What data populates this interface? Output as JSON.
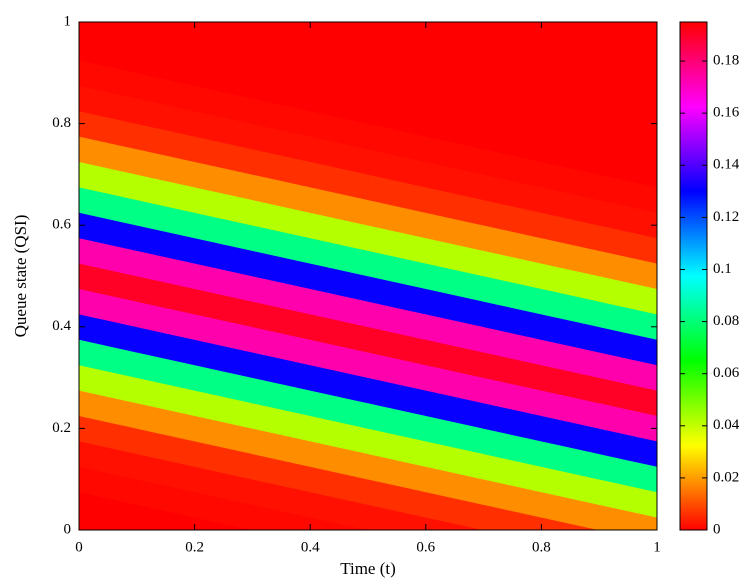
{
  "chart_data": {
    "type": "heatmap",
    "xlabel": "Time (t)",
    "ylabel": "Queue state (QSI)",
    "x": [
      0,
      0.2,
      0.4,
      0.6,
      0.8,
      1
    ],
    "y": [
      0,
      0.05,
      0.1,
      0.15,
      0.2,
      0.25,
      0.3,
      0.35,
      0.4,
      0.45,
      0.5,
      0.55,
      0.6,
      0.65,
      0.7,
      0.75,
      0.8,
      0.85,
      0.9,
      0.95,
      1
    ],
    "z": [
      [
        0,
        0,
        0.001,
        0.002,
        0.006,
        0.018
      ],
      [
        0,
        0.001,
        0.002,
        0.006,
        0.018,
        0.042
      ],
      [
        0.001,
        0.002,
        0.006,
        0.018,
        0.042,
        0.082
      ],
      [
        0.002,
        0.006,
        0.018,
        0.042,
        0.082,
        0.131
      ],
      [
        0.006,
        0.018,
        0.042,
        0.082,
        0.131,
        0.173
      ],
      [
        0.018,
        0.042,
        0.082,
        0.131,
        0.173,
        0.19
      ],
      [
        0.042,
        0.082,
        0.131,
        0.173,
        0.19,
        0.173
      ],
      [
        0.082,
        0.131,
        0.173,
        0.19,
        0.173,
        0.131
      ],
      [
        0.131,
        0.173,
        0.19,
        0.173,
        0.131,
        0.082
      ],
      [
        0.173,
        0.19,
        0.173,
        0.131,
        0.082,
        0.042
      ],
      [
        0.19,
        0.173,
        0.131,
        0.082,
        0.042,
        0.018
      ],
      [
        0.173,
        0.131,
        0.082,
        0.042,
        0.018,
        0.006
      ],
      [
        0.131,
        0.082,
        0.042,
        0.018,
        0.006,
        0.002
      ],
      [
        0.082,
        0.042,
        0.018,
        0.006,
        0.002,
        0.001
      ],
      [
        0.042,
        0.018,
        0.006,
        0.002,
        0.001,
        0
      ],
      [
        0.018,
        0.006,
        0.002,
        0.001,
        0,
        0
      ],
      [
        0.006,
        0.002,
        0.001,
        0,
        0,
        0
      ],
      [
        0.002,
        0.001,
        0,
        0,
        0,
        0
      ],
      [
        0.001,
        0,
        0,
        0,
        0,
        0
      ],
      [
        0,
        0,
        0,
        0,
        0,
        0
      ],
      [
        0,
        0,
        0,
        0,
        0,
        0
      ]
    ],
    "xlim": [
      0,
      1
    ],
    "ylim": [
      0,
      1
    ],
    "xticks": [
      0,
      0.2,
      0.4,
      0.6,
      0.8,
      1
    ],
    "yticks": [
      0,
      0.2,
      0.4,
      0.6,
      0.8,
      1
    ],
    "colormap": "hsv",
    "clim": [
      0,
      0.195
    ],
    "colorbar_ticks": [
      0,
      0.02,
      0.04,
      0.06,
      0.08,
      0.1,
      0.12,
      0.14,
      0.16,
      0.18
    ]
  }
}
